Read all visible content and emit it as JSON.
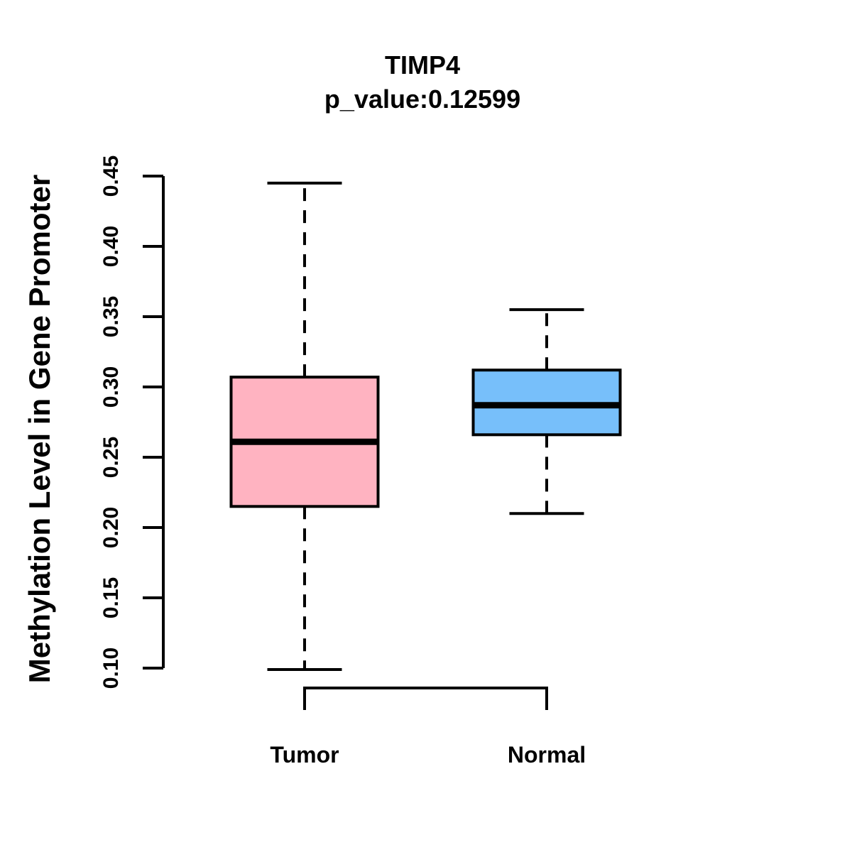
{
  "header": {
    "title": "TIMP4",
    "subtitle": "p_value:0.12599",
    "p_value": "0.12599"
  },
  "chart_data": {
    "type": "boxplot",
    "title": "TIMP4",
    "subtitle": "p_value:0.12599",
    "xlabel": "",
    "ylabel": "Methylation Level in Gene Promoter",
    "ylim": [
      0.1,
      0.45
    ],
    "yticks": [
      0.1,
      0.15,
      0.2,
      0.25,
      0.3,
      0.35,
      0.4,
      0.45
    ],
    "grid": false,
    "legend": "none",
    "categories": [
      "Tumor",
      "Normal"
    ],
    "series": [
      {
        "name": "Tumor",
        "color": "#FFB3C1",
        "lower_whisker": 0.099,
        "q1": 0.215,
        "median": 0.261,
        "q3": 0.307,
        "upper_whisker": 0.445,
        "outliers": []
      },
      {
        "name": "Normal",
        "color": "#77BFFA",
        "lower_whisker": 0.21,
        "q1": 0.266,
        "median": 0.287,
        "q3": 0.312,
        "upper_whisker": 0.355,
        "outliers": []
      }
    ],
    "colors": {
      "tumor_fill": "#FFB3C1",
      "normal_fill": "#77BFFA",
      "line": "#000000",
      "background": "#FFFFFF"
    }
  }
}
